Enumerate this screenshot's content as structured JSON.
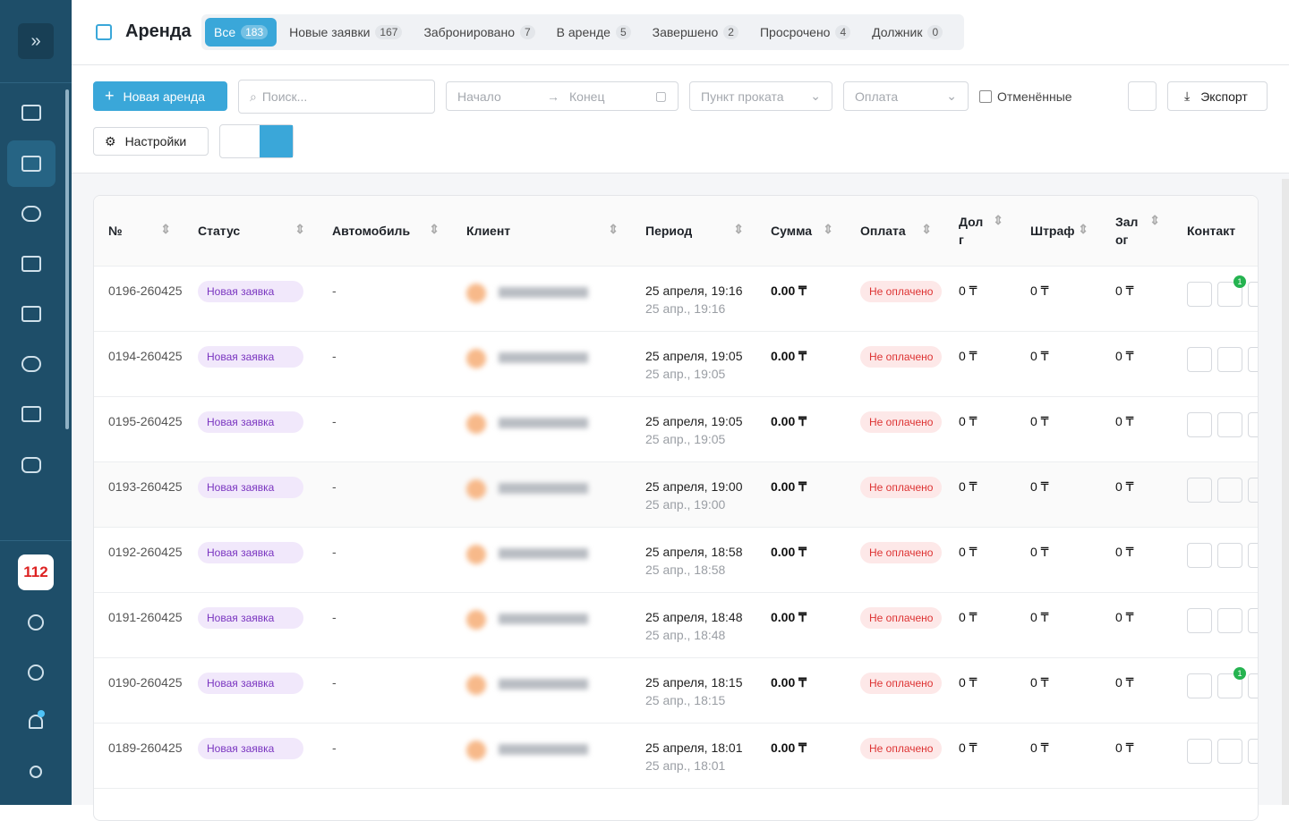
{
  "sidebar": {
    "badge": "112"
  },
  "header": {
    "title": "Аренда",
    "tabs": [
      {
        "label": "Все",
        "count": 183
      },
      {
        "label": "Новые заявки",
        "count": 167
      },
      {
        "label": "Забронировано",
        "count": 7
      },
      {
        "label": "В аренде",
        "count": 5
      },
      {
        "label": "Завершено",
        "count": 2
      },
      {
        "label": "Просрочено",
        "count": 4
      },
      {
        "label": "Должник",
        "count": 0
      }
    ]
  },
  "toolbar": {
    "new_button": "Новая аренда",
    "search_placeholder": "Поиск...",
    "date_start": "Начало",
    "date_end": "Конец",
    "location": "Пункт проката",
    "payment": "Оплата",
    "cancelled": "Отменённые",
    "export": "Экспорт",
    "settings": "Настройки"
  },
  "table": {
    "columns": [
      "№",
      "Статус",
      "Автомобиль",
      "Клиент",
      "Период",
      "Сумма",
      "Оплата",
      "Долг",
      "Штраф",
      "Залог",
      "Контакт"
    ],
    "rows": [
      {
        "id": "0196-260425",
        "status": "Новая заявка",
        "car": "-",
        "period": "25 апреля, 19:16",
        "period_short": "25 апр., 19:16",
        "sum": "0.00 ₸",
        "payment": "Не оплачено",
        "debt": "0 ₸",
        "fine": "0 ₸",
        "deposit": "0 ₸",
        "unread": 1
      },
      {
        "id": "0194-260425",
        "status": "Новая заявка",
        "car": "-",
        "period": "25 апреля, 19:05",
        "period_short": "25 апр., 19:05",
        "sum": "0.00 ₸",
        "payment": "Не оплачено",
        "debt": "0 ₸",
        "fine": "0 ₸",
        "deposit": "0 ₸"
      },
      {
        "id": "0195-260425",
        "status": "Новая заявка",
        "car": "-",
        "period": "25 апреля, 19:05",
        "period_short": "25 апр., 19:05",
        "sum": "0.00 ₸",
        "payment": "Не оплачено",
        "debt": "0 ₸",
        "fine": "0 ₸",
        "deposit": "0 ₸"
      },
      {
        "id": "0193-260425",
        "status": "Новая заявка",
        "car": "-",
        "period": "25 апреля, 19:00",
        "period_short": "25 апр., 19:00",
        "sum": "0.00 ₸",
        "payment": "Не оплачено",
        "debt": "0 ₸",
        "fine": "0 ₸",
        "deposit": "0 ₸"
      },
      {
        "id": "0192-260425",
        "status": "Новая заявка",
        "car": "-",
        "period": "25 апреля, 18:58",
        "period_short": "25 апр., 18:58",
        "sum": "0.00 ₸",
        "payment": "Не оплачено",
        "debt": "0 ₸",
        "fine": "0 ₸",
        "deposit": "0 ₸"
      },
      {
        "id": "0191-260425",
        "status": "Новая заявка",
        "car": "-",
        "period": "25 апреля, 18:48",
        "period_short": "25 апр., 18:48",
        "sum": "0.00 ₸",
        "payment": "Не оплачено",
        "debt": "0 ₸",
        "fine": "0 ₸",
        "deposit": "0 ₸"
      },
      {
        "id": "0190-260425",
        "status": "Новая заявка",
        "car": "-",
        "period": "25 апреля, 18:15",
        "period_short": "25 апр., 18:15",
        "sum": "0.00 ₸",
        "payment": "Не оплачено",
        "debt": "0 ₸",
        "fine": "0 ₸",
        "deposit": "0 ₸",
        "unread": 1
      },
      {
        "id": "0189-260425",
        "status": "Новая заявка",
        "car": "-",
        "period": "25 апреля, 18:01",
        "period_short": "25 апр., 18:01",
        "sum": "0.00 ₸",
        "payment": "Не оплачено",
        "debt": "0 ₸",
        "fine": "0 ₸",
        "deposit": "0 ₸"
      }
    ]
  }
}
